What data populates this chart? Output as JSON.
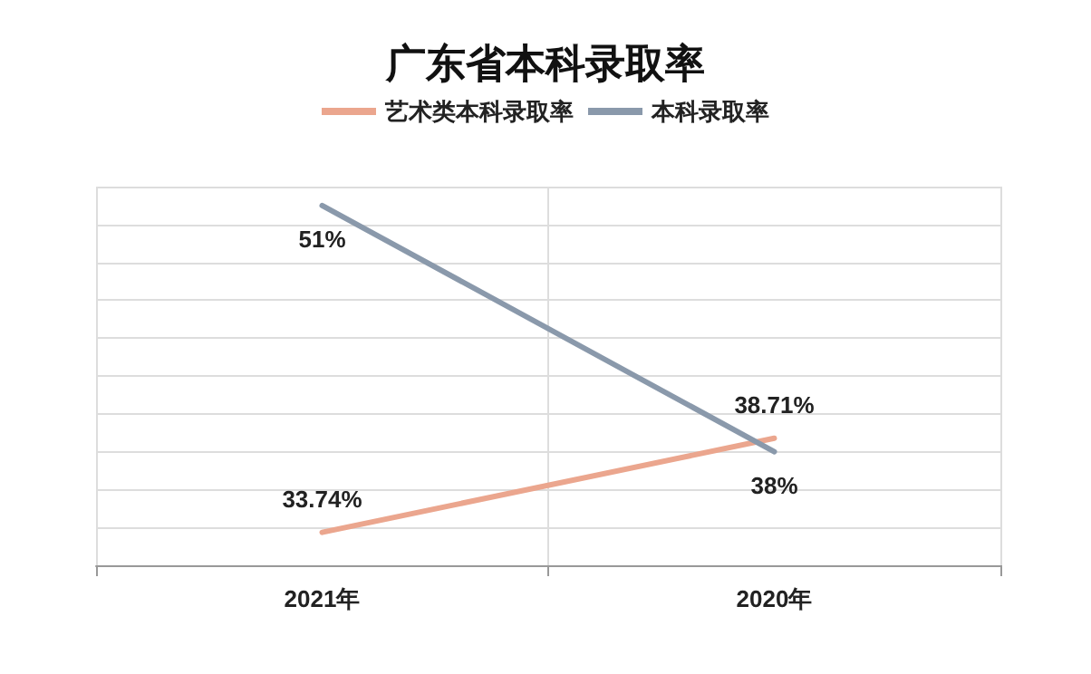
{
  "chart_data": {
    "type": "line",
    "title": "广东省本科录取率",
    "categories": [
      "2021年",
      "2020年"
    ],
    "series": [
      {
        "name": "艺术类本科录取率",
        "color": "#eba68e",
        "values": [
          33.74,
          38.71
        ],
        "value_labels": [
          "33.74%",
          "38.71%"
        ]
      },
      {
        "name": "本科录取率",
        "color": "#8a99ab",
        "values": [
          51,
          38
        ],
        "value_labels": [
          "51%",
          "38%"
        ]
      }
    ],
    "grid": true,
    "legend": "top",
    "tick_labels": "x",
    "marker": "none"
  }
}
